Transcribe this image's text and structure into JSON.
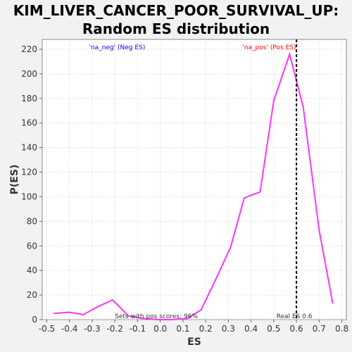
{
  "chart_data": {
    "type": "line",
    "title_lines": [
      "KIM_LIVER_CANCER_POOR_SURVIVAL_UP:",
      "Random ES distribution"
    ],
    "xlabel": "ES",
    "ylabel": "P(ES)",
    "xlim": [
      -0.52,
      0.82
    ],
    "ylim": [
      0,
      228
    ],
    "xticks": [
      -0.5,
      -0.4,
      -0.3,
      -0.2,
      -0.1,
      0.0,
      0.1,
      0.2,
      0.3,
      0.4,
      0.5,
      0.6,
      0.7,
      0.8
    ],
    "xtick_labels": [
      "-0.5",
      "-0.4",
      "-0.3",
      "-0.2",
      "-0.1",
      "0.0",
      "0.1",
      "0.2",
      "0.3",
      "0.4",
      "0.5",
      "0.6",
      "0.7",
      "0.8"
    ],
    "yticks": [
      0,
      20,
      40,
      60,
      80,
      100,
      120,
      140,
      160,
      180,
      200,
      220
    ],
    "ytick_labels": [
      "0",
      "20",
      "40",
      "60",
      "80",
      "100",
      "120",
      "140",
      "160",
      "180",
      "200",
      "220"
    ],
    "grid": true,
    "series": [
      {
        "color": "#ff33ff",
        "x": [
          -0.47,
          -0.4,
          -0.34,
          -0.27,
          -0.21,
          -0.14,
          -0.08,
          -0.01,
          0.05,
          0.12,
          0.18,
          0.24,
          0.31,
          0.37,
          0.44,
          0.5,
          0.57,
          0.63,
          0.7,
          0.76
        ],
        "y": [
          5,
          6,
          4,
          11,
          16,
          3,
          1,
          0,
          0,
          1,
          8,
          31,
          59,
          99,
          104,
          178,
          216,
          173,
          73,
          13
        ]
      }
    ],
    "real_es": {
      "x": 0.6,
      "label": "Real ES 0.6"
    },
    "annotations": {
      "neg_label": "'na_neg' (Neg ES)",
      "neg_color": "#0000ff",
      "pos_label": "'na_pos' (Pos ES)",
      "pos_color": "#ff0000",
      "pos_scores": "Sets with pos scores: 96%"
    }
  }
}
